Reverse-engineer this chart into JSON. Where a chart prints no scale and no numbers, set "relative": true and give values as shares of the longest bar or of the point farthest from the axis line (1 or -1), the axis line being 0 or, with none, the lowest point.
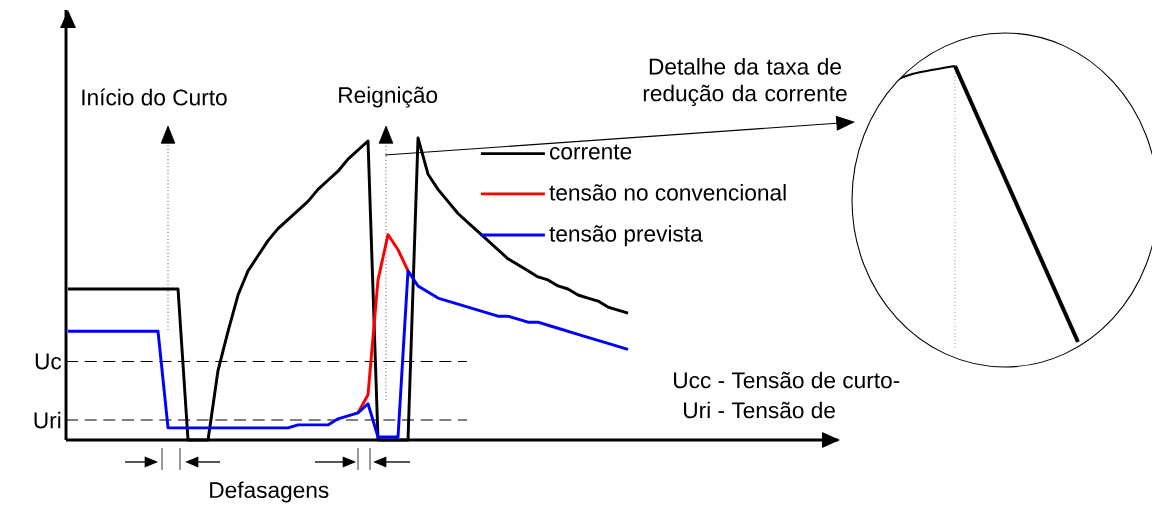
{
  "chart_data": {
    "type": "line",
    "relative": true,
    "categories": [
      null,
      null,
      null,
      null,
      null,
      null,
      null,
      null,
      null,
      null,
      null,
      null,
      null,
      null,
      null,
      null,
      null,
      null,
      null,
      null,
      null,
      null,
      null,
      null,
      null,
      null,
      null,
      null,
      null,
      null,
      null,
      null,
      null,
      null,
      null,
      null,
      null,
      null,
      null,
      null,
      null,
      null,
      null,
      null,
      null,
      null,
      null,
      null,
      null,
      null,
      null,
      null,
      null,
      null,
      null,
      null,
      null,
      null
    ],
    "series": [
      {
        "name": "corrente",
        "color": "#000000",
        "values": [
          0.5,
          0.5,
          0.5,
          0.5,
          0.5,
          0.5,
          0.5,
          0.5,
          0.5,
          0.5,
          0.5,
          0.5,
          0,
          0,
          0,
          0.23,
          0.36,
          0.48,
          0.56,
          0.61,
          0.66,
          0.7,
          0.73,
          0.76,
          0.79,
          0.83,
          0.86,
          0.89,
          0.93,
          0.96,
          0.99,
          0,
          0,
          0,
          0,
          1.0,
          0.88,
          0.83,
          0.79,
          0.75,
          0.72,
          0.69,
          0.66,
          0.63,
          0.6,
          0.58,
          0.56,
          0.54,
          0.53,
          0.51,
          0.5,
          0.48,
          0.47,
          0.46,
          0.44,
          0.43,
          0.42,
          null
        ]
      },
      {
        "name": "tensão no convencional",
        "color": "#ff0000",
        "values": [
          null,
          null,
          null,
          null,
          null,
          null,
          null,
          null,
          null,
          null,
          null,
          null,
          null,
          null,
          null,
          null,
          null,
          null,
          null,
          null,
          null,
          null,
          null,
          null,
          null,
          null,
          null,
          null,
          null,
          0.09,
          0.15,
          0.53,
          0.68,
          0.63,
          0.56,
          null,
          null,
          null,
          null,
          null,
          null,
          null,
          null,
          null,
          null,
          null,
          null,
          null,
          null,
          null,
          null,
          null,
          null,
          null,
          null,
          null,
          null,
          null
        ]
      },
      {
        "name": "tensão prevista",
        "color": "#0000ff",
        "values": [
          0.36,
          0.36,
          0.36,
          0.36,
          0.36,
          0.36,
          0.36,
          0.36,
          0.36,
          0.36,
          0.04,
          0.04,
          0.04,
          0.04,
          0.04,
          0.04,
          0.04,
          0.04,
          0.04,
          0.04,
          0.04,
          0.04,
          0.04,
          0.05,
          0.05,
          0.05,
          0.05,
          0.07,
          0.08,
          0.09,
          0.12,
          0.01,
          0.01,
          0.01,
          0.56,
          0.51,
          0.49,
          0.47,
          0.46,
          0.45,
          0.44,
          0.43,
          0.42,
          0.41,
          0.41,
          0.4,
          0.39,
          0.39,
          0.38,
          0.37,
          0.36,
          0.35,
          0.34,
          0.33,
          0.32,
          0.31,
          0.3,
          null
        ]
      }
    ],
    "ref_lines": [
      {
        "axis": "y",
        "value": 0.26,
        "label": "Uc",
        "line_style": "dashed"
      },
      {
        "axis": "y",
        "value": 0.066,
        "label": "Uri",
        "line_style": "dashed"
      }
    ],
    "annotations": [
      "Início do Curto",
      "Reignição",
      "Detalhe da taxa de redução da corrente",
      "Ucc - Tensão de curto-",
      "Uri - Tensão de",
      "Defasagens"
    ],
    "legend": "top",
    "line_style": "solid"
  }
}
